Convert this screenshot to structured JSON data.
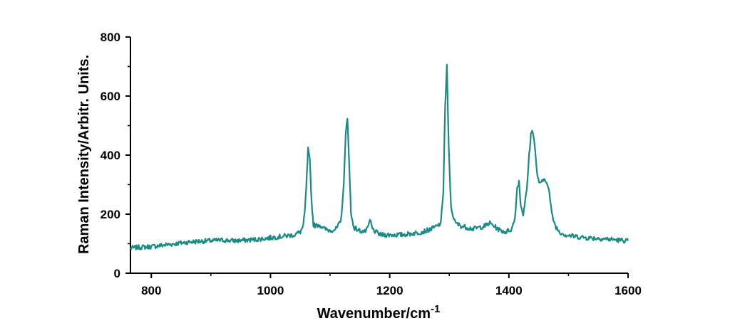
{
  "chart_data": {
    "type": "line",
    "xlabel": "Wavenumber/cm",
    "xlabel_superscript": "-1",
    "ylabel": "Raman Intensity/Arbitr. Units.",
    "xlim": [
      765,
      1600
    ],
    "ylim": [
      0,
      800
    ],
    "xticks": [
      "800",
      "1000",
      "1200",
      "1400",
      "1600"
    ],
    "yticks": [
      "0",
      "200",
      "400",
      "600",
      "800"
    ],
    "grid": false,
    "legend": "none",
    "line_color": "#1a8a85",
    "series": [
      {
        "x": [
          765,
          780,
          800,
          820,
          840,
          860,
          880,
          900,
          920,
          940,
          960,
          980,
          1000,
          1020,
          1040,
          1050,
          1055,
          1058,
          1061,
          1063,
          1066,
          1069,
          1072,
          1076,
          1080,
          1085,
          1090,
          1100,
          1110,
          1118,
          1123,
          1126,
          1129,
          1132,
          1135,
          1140,
          1148,
          1158,
          1163,
          1167,
          1171,
          1176,
          1185,
          1200,
          1220,
          1240,
          1255,
          1270,
          1280,
          1286,
          1290,
          1293,
          1296,
          1299,
          1303,
          1310,
          1320,
          1340,
          1360,
          1368,
          1375,
          1385,
          1395,
          1405,
          1410,
          1414,
          1417,
          1420,
          1424,
          1430,
          1434,
          1437,
          1440,
          1443,
          1447,
          1452,
          1456,
          1460,
          1464,
          1468,
          1472,
          1478,
          1485,
          1495,
          1510,
          1530,
          1550,
          1570,
          1585,
          1600
        ],
        "y": [
          85,
          88,
          90,
          95,
          100,
          105,
          108,
          110,
          112,
          110,
          112,
          115,
          120,
          125,
          130,
          140,
          160,
          220,
          330,
          420,
          380,
          240,
          165,
          160,
          165,
          160,
          150,
          145,
          150,
          175,
          300,
          470,
          520,
          380,
          200,
          155,
          145,
          140,
          150,
          180,
          150,
          140,
          130,
          130,
          130,
          135,
          140,
          150,
          160,
          170,
          280,
          560,
          700,
          430,
          220,
          170,
          160,
          150,
          160,
          170,
          160,
          145,
          140,
          150,
          185,
          290,
          310,
          230,
          200,
          280,
          400,
          470,
          485,
          440,
          340,
          300,
          310,
          320,
          310,
          270,
          200,
          160,
          140,
          130,
          125,
          120,
          118,
          115,
          112,
          110
        ]
      }
    ]
  }
}
